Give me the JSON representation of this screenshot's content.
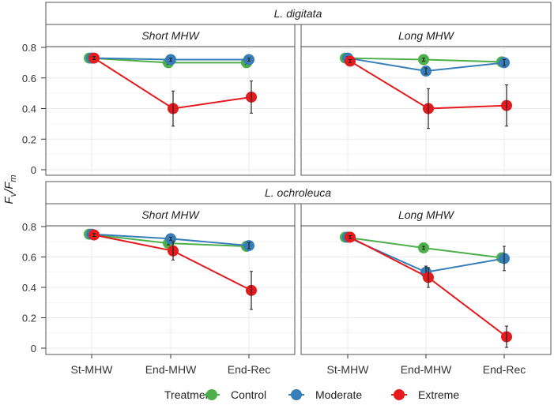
{
  "chart_data": {
    "type": "line",
    "ylabel": "Fv/Fm",
    "ylabel_main": "F",
    "ylabel_sub1": "v",
    "ylabel_sep": "/F",
    "ylabel_sub2": "m",
    "ylim": [
      0,
      0.85
    ],
    "yticks": [
      "0",
      "0.2",
      "0.4",
      "0.6",
      "0.8"
    ],
    "ytick_values": [
      0,
      0.2,
      0.4,
      0.6,
      0.8
    ],
    "categories": [
      "St-MHW",
      "End-MHW",
      "End-Rec"
    ],
    "legend": {
      "title": "Treatment",
      "placement": "bottom",
      "entries": [
        "Control",
        "Moderate",
        "Extreme"
      ]
    },
    "colors": {
      "Control": "#4daf4a",
      "Moderate": "#377eb8",
      "Extreme": "#e41a1c"
    },
    "rows": [
      {
        "species": "L. digitata",
        "panels": [
          {
            "title": "Short MHW",
            "series": [
              {
                "name": "Control",
                "values": [
                  0.73,
                  0.7,
                  0.7
                ],
                "err": [
                  0.01,
                  0.01,
                  0.01
                ]
              },
              {
                "name": "Moderate",
                "values": [
                  0.73,
                  0.72,
                  0.72
                ],
                "err": [
                  0.01,
                  0.01,
                  0.01
                ]
              },
              {
                "name": "Extreme",
                "values": [
                  0.73,
                  0.4,
                  0.475
                ],
                "err": [
                  0.01,
                  0.115,
                  0.105
                ]
              }
            ]
          },
          {
            "title": "Long MHW",
            "series": [
              {
                "name": "Control",
                "values": [
                  0.73,
                  0.72,
                  0.705
                ],
                "err": [
                  0.01,
                  0.01,
                  0.01
                ]
              },
              {
                "name": "Moderate",
                "values": [
                  0.73,
                  0.645,
                  0.7
                ],
                "err": [
                  0.01,
                  0.02,
                  0.02
                ]
              },
              {
                "name": "Extreme",
                "values": [
                  0.71,
                  0.4,
                  0.42
                ],
                "err": [
                  0.01,
                  0.13,
                  0.135
                ]
              }
            ]
          }
        ]
      },
      {
        "species": "L. ochroleuca",
        "panels": [
          {
            "title": "Short MHW",
            "series": [
              {
                "name": "Control",
                "values": [
                  0.75,
                  0.69,
                  0.67
                ],
                "err": [
                  0.01,
                  0.01,
                  0.01
                ]
              },
              {
                "name": "Moderate",
                "values": [
                  0.75,
                  0.72,
                  0.675
                ],
                "err": [
                  0.01,
                  0.01,
                  0.02
                ]
              },
              {
                "name": "Extreme",
                "values": [
                  0.745,
                  0.64,
                  0.38
                ],
                "err": [
                  0.01,
                  0.06,
                  0.125
                ]
              }
            ]
          },
          {
            "title": "Long MHW",
            "series": [
              {
                "name": "Control",
                "values": [
                  0.73,
                  0.66,
                  0.595
                ],
                "err": [
                  0.01,
                  0.01,
                  0.01
                ]
              },
              {
                "name": "Moderate",
                "values": [
                  0.73,
                  0.5,
                  0.59
                ],
                "err": [
                  0.01,
                  0.04,
                  0.08
                ]
              },
              {
                "name": "Extreme",
                "values": [
                  0.73,
                  0.465,
                  0.075
                ],
                "err": [
                  0.01,
                  0.065,
                  0.07
                ]
              }
            ]
          }
        ]
      }
    ]
  }
}
